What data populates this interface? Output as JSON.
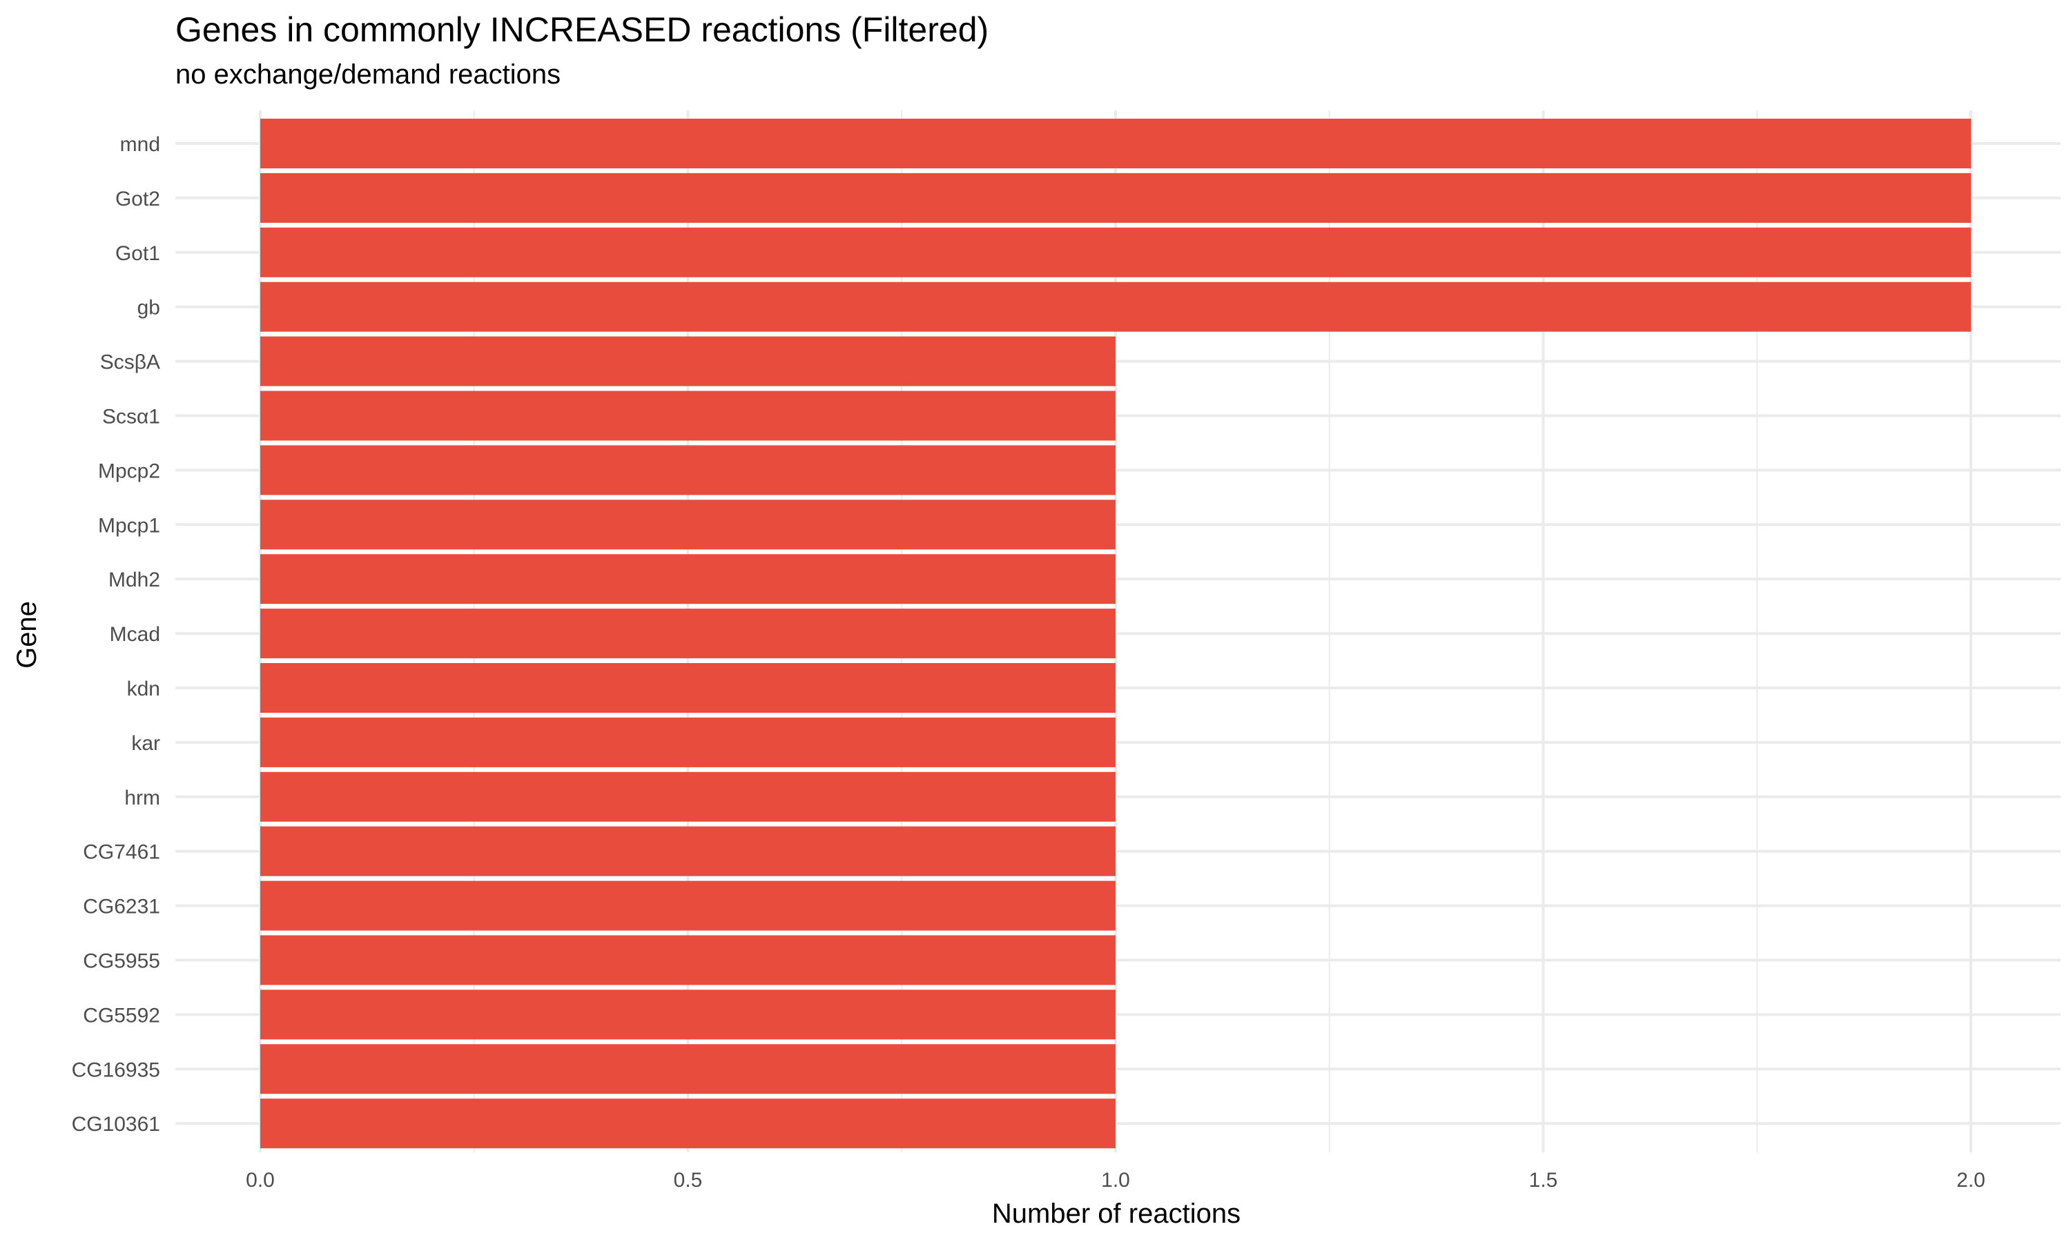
{
  "chart_data": {
    "type": "bar",
    "orientation": "horizontal",
    "title": "Genes in commonly INCREASED reactions (Filtered)",
    "subtitle": "no exchange/demand reactions",
    "xlabel": "Number of reactions",
    "ylabel": "Gene",
    "xlim": [
      0,
      2
    ],
    "x_ticks": [
      0.0,
      0.5,
      1.0,
      1.5,
      2.0
    ],
    "x_tick_labels": [
      "0.0",
      "0.5",
      "1.0",
      "1.5",
      "2.0"
    ],
    "categories": [
      "mnd",
      "Got2",
      "Got1",
      "gb",
      "ScsβA",
      "Scsα1",
      "Mpcp2",
      "Mpcp1",
      "Mdh2",
      "Mcad",
      "kdn",
      "kar",
      "hrm",
      "CG7461",
      "CG6231",
      "CG5955",
      "CG5592",
      "CG16935",
      "CG10361"
    ],
    "values": [
      2,
      2,
      2,
      2,
      1,
      1,
      1,
      1,
      1,
      1,
      1,
      1,
      1,
      1,
      1,
      1,
      1,
      1,
      1
    ],
    "bar_color": "#E84C3D",
    "grid": true,
    "legend": "none"
  }
}
